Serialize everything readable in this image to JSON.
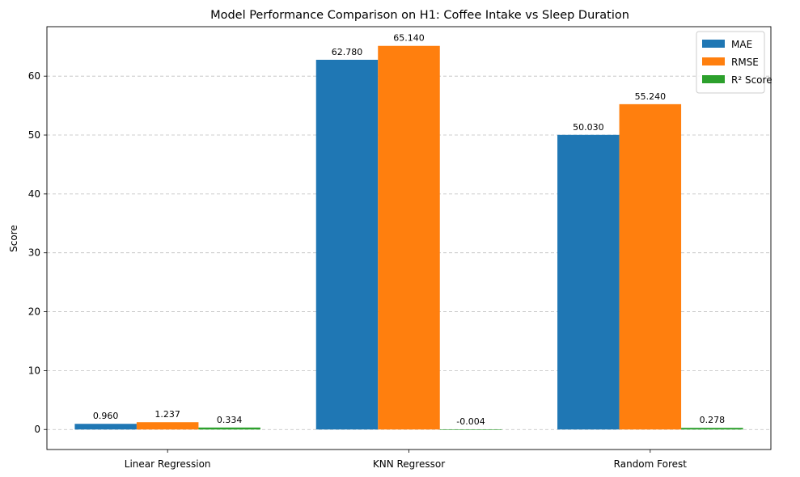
{
  "chart_data": {
    "type": "bar",
    "title": "Model Performance Comparison on H1: Coffee Intake vs Sleep Duration",
    "xlabel": "",
    "ylabel": "Score",
    "categories": [
      "Linear Regression",
      "KNN Regressor",
      "Random Forest"
    ],
    "series": [
      {
        "name": "MAE",
        "color": "#1f77b4",
        "values": [
          0.96,
          62.78,
          50.03
        ],
        "labels": [
          "0.960",
          "62.780",
          "50.030"
        ]
      },
      {
        "name": "RMSE",
        "color": "#ff7f0e",
        "values": [
          1.237,
          65.14,
          55.24
        ],
        "labels": [
          "1.237",
          "65.140",
          "55.240"
        ]
      },
      {
        "name": "R² Score",
        "color": "#2ca02c",
        "values": [
          0.334,
          -0.004,
          0.278
        ],
        "labels": [
          "0.334",
          "-0.004",
          "0.278"
        ]
      }
    ],
    "ylim": [
      -3.4,
      68.4
    ],
    "yticks": [
      0,
      10,
      20,
      30,
      40,
      50,
      60
    ],
    "grid": "y-dashed",
    "legend_position": "top-right"
  }
}
